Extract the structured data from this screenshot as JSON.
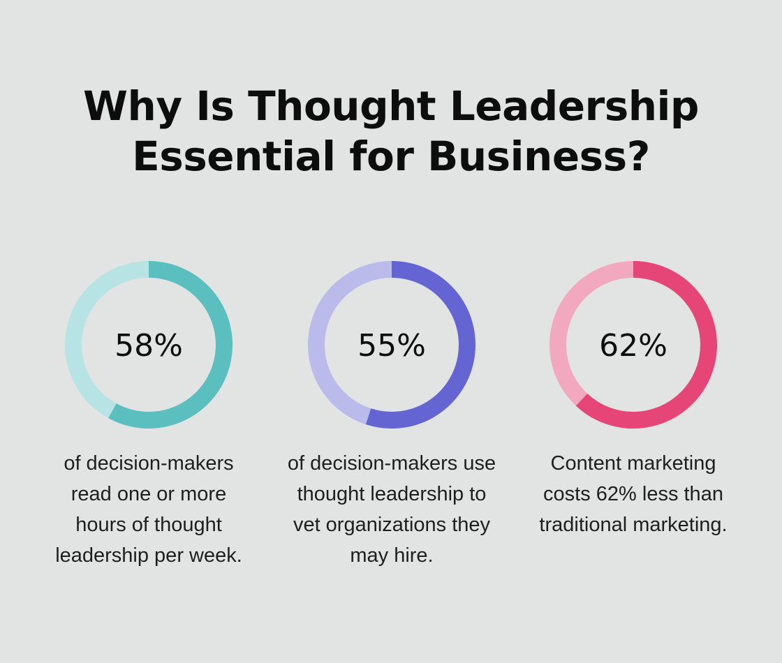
{
  "title": "Why Is Thought Leadership\nEssential for Business?",
  "chart_data": [
    {
      "type": "pie",
      "value_percent": 58,
      "label": "58%",
      "caption": "of decision-makers read one or more hours of thought leadership per week.",
      "colors": {
        "filled": "#5bbfc0",
        "remainder": "#b8e3e4"
      }
    },
    {
      "type": "pie",
      "value_percent": 55,
      "label": "55%",
      "caption": "of decision-makers use thought leadership to vet organizations they may hire.",
      "colors": {
        "filled": "#6464d2",
        "remainder": "#babbea"
      }
    },
    {
      "type": "pie",
      "value_percent": 62,
      "label": "62%",
      "caption": "Content marketing costs 62% less than traditional marketing.",
      "colors": {
        "filled": "#e54677",
        "remainder": "#f2a9c0"
      }
    }
  ]
}
